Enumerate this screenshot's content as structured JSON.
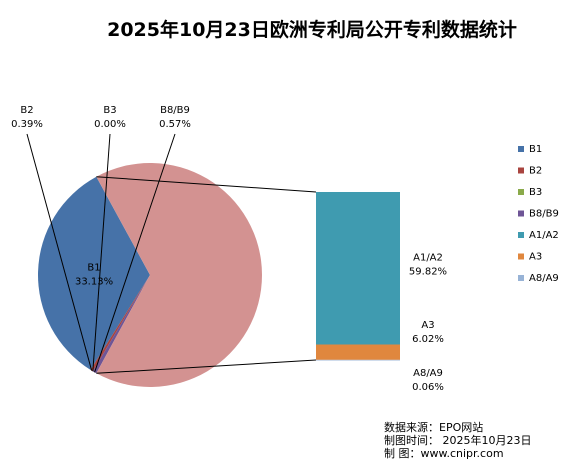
{
  "chart_data": {
    "type": "pie",
    "title": "2025年10月23日欧洲专利局公开专利数据统计",
    "slices": [
      {
        "label": "B1",
        "value": 33.13,
        "value_text": "33.13%",
        "color": "#4672a8"
      },
      {
        "label": "B2",
        "value": 0.39,
        "value_text": "0.39%",
        "color": "#a9443f"
      },
      {
        "label": "B3",
        "value": 0.0,
        "value_text": "0.00%",
        "color": "#8aaa4a"
      },
      {
        "label": "B8/B9",
        "value": 0.57,
        "value_text": "0.57%",
        "color": "#6e5596"
      },
      {
        "label": "A1/A2",
        "value": 59.82,
        "value_text": "59.82%",
        "color": "#3f9bb0"
      },
      {
        "label": "A3",
        "value": 6.02,
        "value_text": "6.02%",
        "color": "#e0873e"
      },
      {
        "label": "A8/A9",
        "value": 0.06,
        "value_text": "0.06%",
        "color": "#98b3d6"
      }
    ],
    "pie_group_color": "#d39291",
    "legend_position": "right",
    "source_lines": [
      "数据来源：EPO网站",
      "制图时间：  2025年10月23日",
      "制       图：www.cnipr.com"
    ]
  }
}
